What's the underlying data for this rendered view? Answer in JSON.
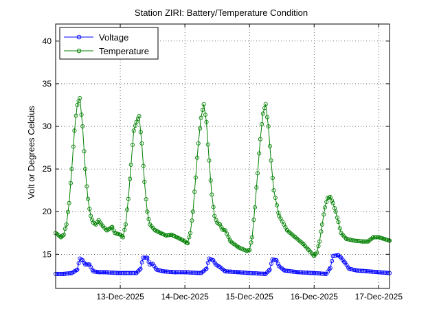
{
  "chart_data": {
    "type": "line",
    "title": "Station ZIRI: Battery/Temperature Condition",
    "xlabel": "",
    "ylabel": "Volt or Degrees Celcius",
    "xlim": [
      "2025-12-12 00:00",
      "2025-12-17 04:00"
    ],
    "ylim": [
      11,
      42
    ],
    "x_ticks": [
      "13-Dec-2025",
      "14-Dec-2025",
      "15-Dec-2025",
      "16-Dec-2025",
      "17-Dec-2025"
    ],
    "y_ticks": [
      15,
      20,
      25,
      30,
      35,
      40
    ],
    "grid": true,
    "legend_position": "top-left",
    "series": [
      {
        "name": "Voltage",
        "color": "#0000ff",
        "marker": "circle",
        "points": [
          [
            "2025-12-12 00:00",
            12.7
          ],
          [
            "2025-12-12 03:00",
            12.7
          ],
          [
            "2025-12-12 06:00",
            12.8
          ],
          [
            "2025-12-12 08:00",
            13.2
          ],
          [
            "2025-12-12 09:00",
            14.5
          ],
          [
            "2025-12-12 10:00",
            14.3
          ],
          [
            "2025-12-12 11:00",
            13.8
          ],
          [
            "2025-12-12 12:30",
            13.8
          ],
          [
            "2025-12-12 14:00",
            13.0
          ],
          [
            "2025-12-12 16:00",
            12.9
          ],
          [
            "2025-12-12 18:00",
            12.9
          ],
          [
            "2025-12-13 00:00",
            12.8
          ],
          [
            "2025-12-13 06:00",
            12.8
          ],
          [
            "2025-12-13 07:30",
            13.3
          ],
          [
            "2025-12-13 08:30",
            14.6
          ],
          [
            "2025-12-13 10:00",
            14.6
          ],
          [
            "2025-12-13 11:00",
            13.8
          ],
          [
            "2025-12-13 12:00",
            13.9
          ],
          [
            "2025-12-13 13:30",
            13.2
          ],
          [
            "2025-12-13 16:00",
            13.0
          ],
          [
            "2025-12-13 20:00",
            12.9
          ],
          [
            "2025-12-14 00:00",
            12.9
          ],
          [
            "2025-12-14 06:00",
            12.8
          ],
          [
            "2025-12-14 08:00",
            13.3
          ],
          [
            "2025-12-14 09:00",
            14.5
          ],
          [
            "2025-12-14 10:30",
            14.3
          ],
          [
            "2025-12-14 11:30",
            13.8
          ],
          [
            "2025-12-14 13:00",
            13.5
          ],
          [
            "2025-12-14 15:00",
            13.0
          ],
          [
            "2025-12-14 20:00",
            12.9
          ],
          [
            "2025-12-15 00:00",
            12.8
          ],
          [
            "2025-12-15 06:00",
            12.7
          ],
          [
            "2025-12-15 07:30",
            13.2
          ],
          [
            "2025-12-15 08:30",
            14.4
          ],
          [
            "2025-12-15 10:00",
            14.3
          ],
          [
            "2025-12-15 11:00",
            13.6
          ],
          [
            "2025-12-15 13:00",
            13.1
          ],
          [
            "2025-12-15 18:00",
            12.9
          ],
          [
            "2025-12-16 00:00",
            12.8
          ],
          [
            "2025-12-16 04:30",
            12.7
          ],
          [
            "2025-12-16 06:00",
            13.4
          ],
          [
            "2025-12-16 07:00",
            14.8
          ],
          [
            "2025-12-16 09:00",
            14.9
          ],
          [
            "2025-12-16 10:00",
            14.6
          ],
          [
            "2025-12-16 11:30",
            14.0
          ],
          [
            "2025-12-16 13:00",
            13.3
          ],
          [
            "2025-12-16 16:00",
            13.1
          ],
          [
            "2025-12-16 20:00",
            13.0
          ],
          [
            "2025-12-17 00:00",
            12.9
          ],
          [
            "2025-12-17 04:00",
            12.8
          ]
        ]
      },
      {
        "name": "Temperature",
        "color": "#008000",
        "marker": "circle",
        "points": [
          [
            "2025-12-12 00:00",
            17.5
          ],
          [
            "2025-12-12 02:00",
            17.0
          ],
          [
            "2025-12-12 03:00",
            17.3
          ],
          [
            "2025-12-12 04:00",
            18.5
          ],
          [
            "2025-12-12 05:00",
            21.0
          ],
          [
            "2025-12-12 06:00",
            25.0
          ],
          [
            "2025-12-12 07:00",
            29.5
          ],
          [
            "2025-12-12 08:00",
            32.5
          ],
          [
            "2025-12-12 09:00",
            33.3
          ],
          [
            "2025-12-12 10:00",
            30.0
          ],
          [
            "2025-12-12 11:00",
            25.0
          ],
          [
            "2025-12-12 12:00",
            21.5
          ],
          [
            "2025-12-12 13:00",
            19.5
          ],
          [
            "2025-12-12 14:00",
            18.7
          ],
          [
            "2025-12-12 15:00",
            18.5
          ],
          [
            "2025-12-12 16:00",
            19.0
          ],
          [
            "2025-12-12 17:00",
            18.5
          ],
          [
            "2025-12-12 19:00",
            17.8
          ],
          [
            "2025-12-12 21:00",
            18.2
          ],
          [
            "2025-12-12 22:00",
            17.5
          ],
          [
            "2025-12-13 00:00",
            17.3
          ],
          [
            "2025-12-13 01:00",
            17.0
          ],
          [
            "2025-12-13 02:00",
            18.5
          ],
          [
            "2025-12-13 03:00",
            21.5
          ],
          [
            "2025-12-13 04:00",
            25.5
          ],
          [
            "2025-12-13 05:00",
            29.5
          ],
          [
            "2025-12-13 06:00",
            30.5
          ],
          [
            "2025-12-13 07:00",
            31.2
          ],
          [
            "2025-12-13 08:00",
            28.0
          ],
          [
            "2025-12-13 09:00",
            23.5
          ],
          [
            "2025-12-13 10:00",
            20.0
          ],
          [
            "2025-12-13 11:00",
            18.5
          ],
          [
            "2025-12-13 13:00",
            17.8
          ],
          [
            "2025-12-13 15:00",
            17.5
          ],
          [
            "2025-12-13 17:00",
            17.2
          ],
          [
            "2025-12-13 19:00",
            17.3
          ],
          [
            "2025-12-13 21:00",
            17.0
          ],
          [
            "2025-12-13 23:00",
            16.7
          ],
          [
            "2025-12-14 01:00",
            16.3
          ],
          [
            "2025-12-14 02:00",
            17.5
          ],
          [
            "2025-12-14 03:00",
            20.0
          ],
          [
            "2025-12-14 04:00",
            24.0
          ],
          [
            "2025-12-14 05:00",
            28.0
          ],
          [
            "2025-12-14 06:00",
            31.0
          ],
          [
            "2025-12-14 07:00",
            32.6
          ],
          [
            "2025-12-14 08:00",
            30.5
          ],
          [
            "2025-12-14 09:00",
            26.0
          ],
          [
            "2025-12-14 10:00",
            22.0
          ],
          [
            "2025-12-14 11:00",
            19.5
          ],
          [
            "2025-12-14 12:00",
            18.7
          ],
          [
            "2025-12-14 13:00",
            18.5
          ],
          [
            "2025-12-14 14:00",
            17.9
          ],
          [
            "2025-12-14 15:00",
            17.8
          ],
          [
            "2025-12-14 17:00",
            16.5
          ],
          [
            "2025-12-14 20:00",
            15.8
          ],
          [
            "2025-12-14 23:00",
            15.4
          ],
          [
            "2025-12-15 00:00",
            15.5
          ],
          [
            "2025-12-15 01:00",
            17.0
          ],
          [
            "2025-12-15 02:00",
            20.5
          ],
          [
            "2025-12-15 03:00",
            24.5
          ],
          [
            "2025-12-15 04:00",
            28.5
          ],
          [
            "2025-12-15 05:00",
            31.5
          ],
          [
            "2025-12-15 06:00",
            32.6
          ],
          [
            "2025-12-15 07:00",
            30.0
          ],
          [
            "2025-12-15 08:00",
            26.0
          ],
          [
            "2025-12-15 09:00",
            22.5
          ],
          [
            "2025-12-15 11:00",
            19.5
          ],
          [
            "2025-12-15 14:00",
            17.8
          ],
          [
            "2025-12-15 17:00",
            17.0
          ],
          [
            "2025-12-15 20:00",
            16.2
          ],
          [
            "2025-12-15 22:00",
            15.5
          ],
          [
            "2025-12-16 00:00",
            14.8
          ],
          [
            "2025-12-16 01:00",
            15.2
          ],
          [
            "2025-12-16 02:00",
            16.5
          ],
          [
            "2025-12-16 03:00",
            18.5
          ],
          [
            "2025-12-16 04:00",
            20.5
          ],
          [
            "2025-12-16 05:00",
            21.6
          ],
          [
            "2025-12-16 06:00",
            21.7
          ],
          [
            "2025-12-16 07:00",
            21.0
          ],
          [
            "2025-12-16 08:00",
            20.0
          ],
          [
            "2025-12-16 09:00",
            18.8
          ],
          [
            "2025-12-16 10:00",
            17.5
          ],
          [
            "2025-12-16 12:00",
            16.8
          ],
          [
            "2025-12-16 15:00",
            16.6
          ],
          [
            "2025-12-16 18:00",
            16.5
          ],
          [
            "2025-12-16 20:00",
            16.5
          ],
          [
            "2025-12-16 22:00",
            17.0
          ],
          [
            "2025-12-17 00:00",
            17.0
          ],
          [
            "2025-12-17 02:00",
            16.8
          ],
          [
            "2025-12-17 04:00",
            16.6
          ]
        ]
      }
    ]
  }
}
